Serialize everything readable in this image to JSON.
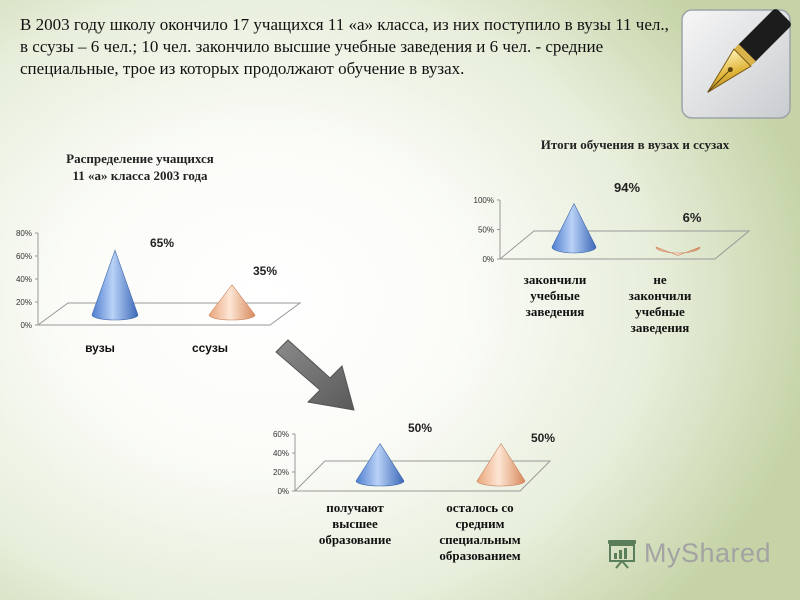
{
  "intro_text": "В 2003 году школу окончило 17 учащихся 11 «а» класса, из них поступило в вузы 11 чел., в ссузы – 6 чел.; 10 чел. закончило высшие учебные заведения и 6 чел. - средние специальные, трое из которых продолжают обучение в вузах.",
  "logo": {
    "text": "MyShared",
    "icon": "presentation-board-icon"
  },
  "colors": {
    "blue_cone": "#6f9be0",
    "peach_cone": "#f2b792",
    "text": "#111111"
  },
  "chart_data": [
    {
      "type": "bar",
      "shape": "cone-3d",
      "title": "Распределение учащихся\n11 «а» класса 2003 года",
      "categories": [
        "вузы",
        "ссузы"
      ],
      "values": [
        65,
        35
      ],
      "value_labels": [
        "65%",
        "35%"
      ],
      "ylim": [
        0,
        80
      ],
      "y_ticks": [
        "0%",
        "20%",
        "40%",
        "60%",
        "80%"
      ],
      "grid": false,
      "legend": "none"
    },
    {
      "type": "bar",
      "shape": "cone-3d",
      "title": "Итоги обучения в вузах и ссузах",
      "categories": [
        "закончили\nучебные\nзаведения",
        "не\nзакончили\nучебные\nзаведения"
      ],
      "values": [
        94,
        6
      ],
      "value_labels": [
        "94%",
        "6%"
      ],
      "ylim": [
        0,
        100
      ],
      "y_ticks": [
        "0%",
        "50%",
        "100%"
      ],
      "grid": false,
      "legend": "none"
    },
    {
      "type": "bar",
      "shape": "cone-3d",
      "title": "",
      "categories": [
        "получают\nвысшее\nобразование",
        "осталось со\nсредним\nспециальным\nобразованием"
      ],
      "values": [
        50,
        50
      ],
      "value_labels": [
        "50%",
        "50%"
      ],
      "ylim": [
        0,
        60
      ],
      "y_ticks": [
        "0%",
        "20%",
        "40%",
        "60%"
      ],
      "grid": false,
      "legend": "none"
    }
  ]
}
